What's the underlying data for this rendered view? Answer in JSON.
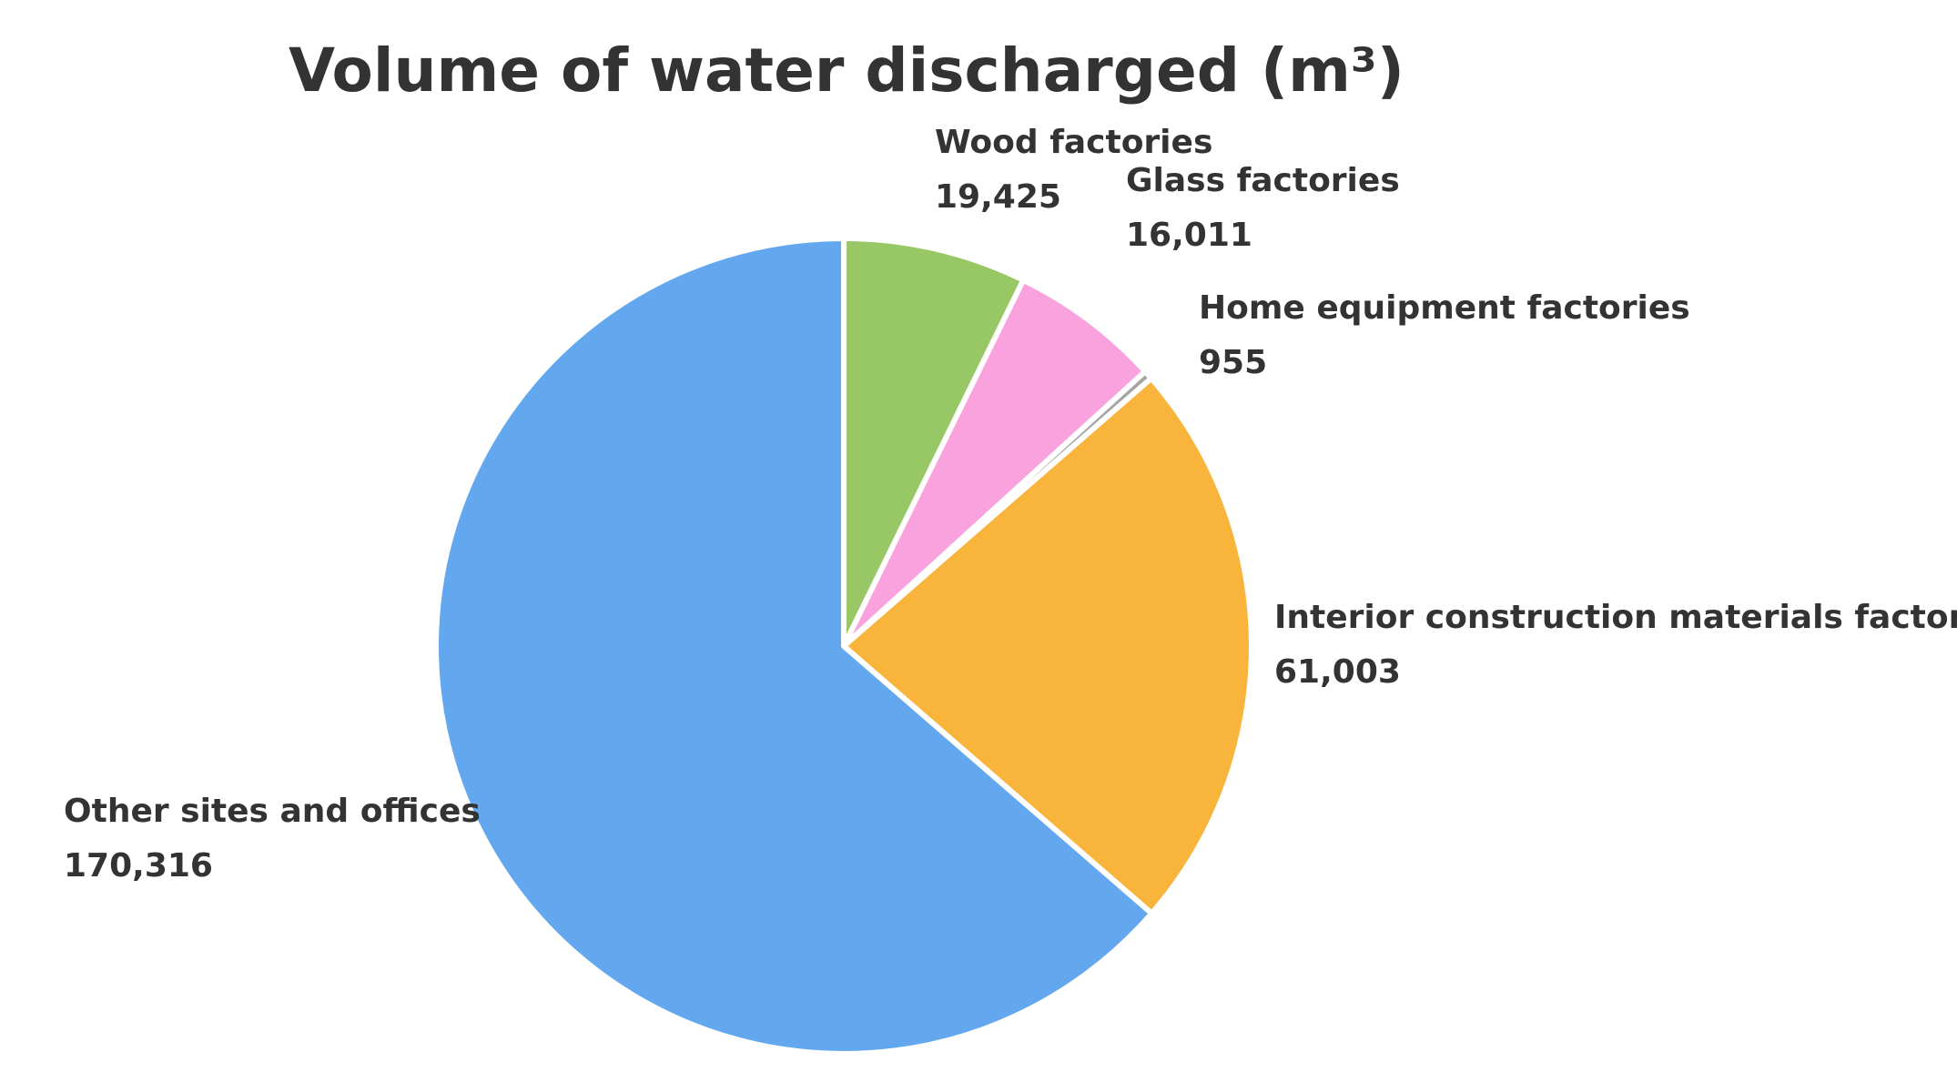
{
  "chart_data": {
    "type": "pie",
    "title": "Volume of water discharged (m³)",
    "start_angle_deg": 0,
    "direction": "clockwise",
    "slices": [
      {
        "label": "Wood factories",
        "value": 19425,
        "value_text": "19,425",
        "color": "#97c865"
      },
      {
        "label": "Glass factories",
        "value": 16011,
        "value_text": "16,011",
        "color": "#f9a2dd"
      },
      {
        "label": "Home equipment factories",
        "value": 955,
        "value_text": "955",
        "color": "#a5a5a5"
      },
      {
        "label": "Interior construction materials factories",
        "value": 61003,
        "value_text": "61,003",
        "color": "#f9b43c"
      },
      {
        "label": "Other sites and offices",
        "value": 170316,
        "value_text": "170,316",
        "color": "#63a8ef"
      }
    ]
  }
}
